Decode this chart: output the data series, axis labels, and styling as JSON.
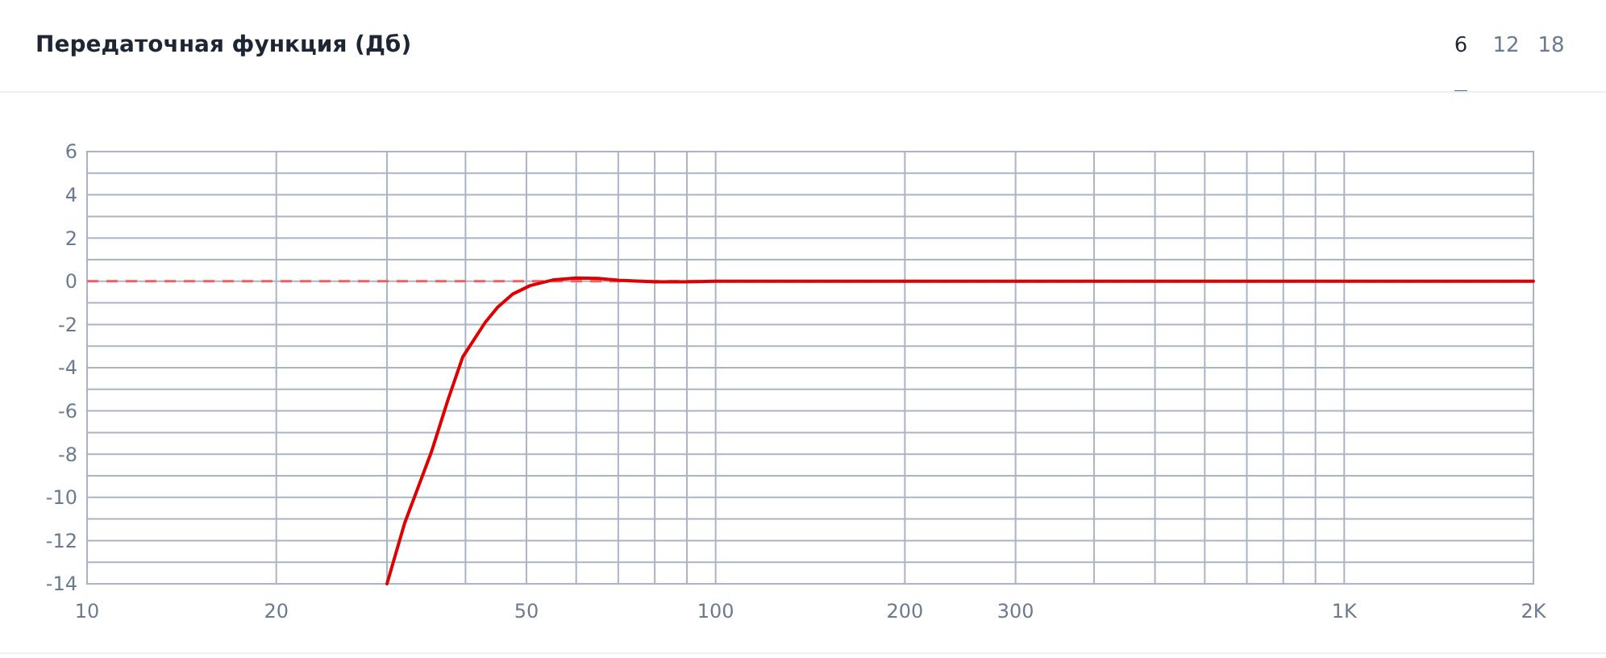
{
  "chart_data": {
    "type": "line",
    "title": "Передаточная функция (Дб)",
    "annotations": [
      "6",
      "12",
      "18"
    ],
    "log": "x",
    "grid": true,
    "marker": "none",
    "line_style": "solid",
    "xlim": [
      10,
      2000
    ],
    "xticks": [
      10,
      20,
      {
        "value": 30,
        "label": null
      },
      {
        "value": 40,
        "label": null
      },
      50,
      {
        "value": 60,
        "label": null
      },
      {
        "value": 70,
        "label": null
      },
      {
        "value": 80,
        "label": null
      },
      {
        "value": 90,
        "label": null
      },
      100,
      200,
      300,
      {
        "value": 400,
        "label": null
      },
      {
        "value": 500,
        "label": null
      },
      {
        "value": 600,
        "label": null
      },
      {
        "value": 700,
        "label": null
      },
      {
        "value": 800,
        "label": null
      },
      {
        "value": 900,
        "label": null
      },
      {
        "value": 1000,
        "label": "1K"
      },
      {
        "value": 2000,
        "label": "2K"
      }
    ],
    "ylim": [
      -14,
      6
    ],
    "yticks": [
      -14,
      {
        "value": -13,
        "label": null
      },
      -12,
      {
        "value": -11,
        "label": null
      },
      -10,
      {
        "value": -9,
        "label": null
      },
      -8,
      {
        "value": -7,
        "label": null
      },
      -6,
      {
        "value": -5,
        "label": null
      },
      -4,
      {
        "value": -3,
        "label": null
      },
      -2,
      {
        "value": -1,
        "label": null
      },
      0,
      {
        "value": 1,
        "label": null
      },
      2,
      {
        "value": 3,
        "label": null
      },
      4,
      {
        "value": 5,
        "label": null
      },
      6
    ],
    "ref_lines": [
      {
        "axis": "y",
        "value": 0,
        "color": "#f06060",
        "line_style": "dashed"
      }
    ],
    "series": [
      {
        "color": "#e00000",
        "x": [
          30,
          32,
          35.3,
          37.5,
          39.6,
          43,
          45,
          47.5,
          50.7,
          55.3,
          60,
          65,
          70,
          80,
          90,
          100,
          150,
          200,
          300,
          500,
          1000,
          2000
        ],
        "values": [
          -14,
          -11.2,
          -7.9,
          -5.5,
          -3.5,
          -1.9,
          -1.2,
          -0.6,
          -0.2,
          0.07,
          0.15,
          0.13,
          0.05,
          -0.03,
          -0.03,
          0,
          0,
          0,
          0,
          0,
          0,
          0
        ]
      }
    ]
  }
}
